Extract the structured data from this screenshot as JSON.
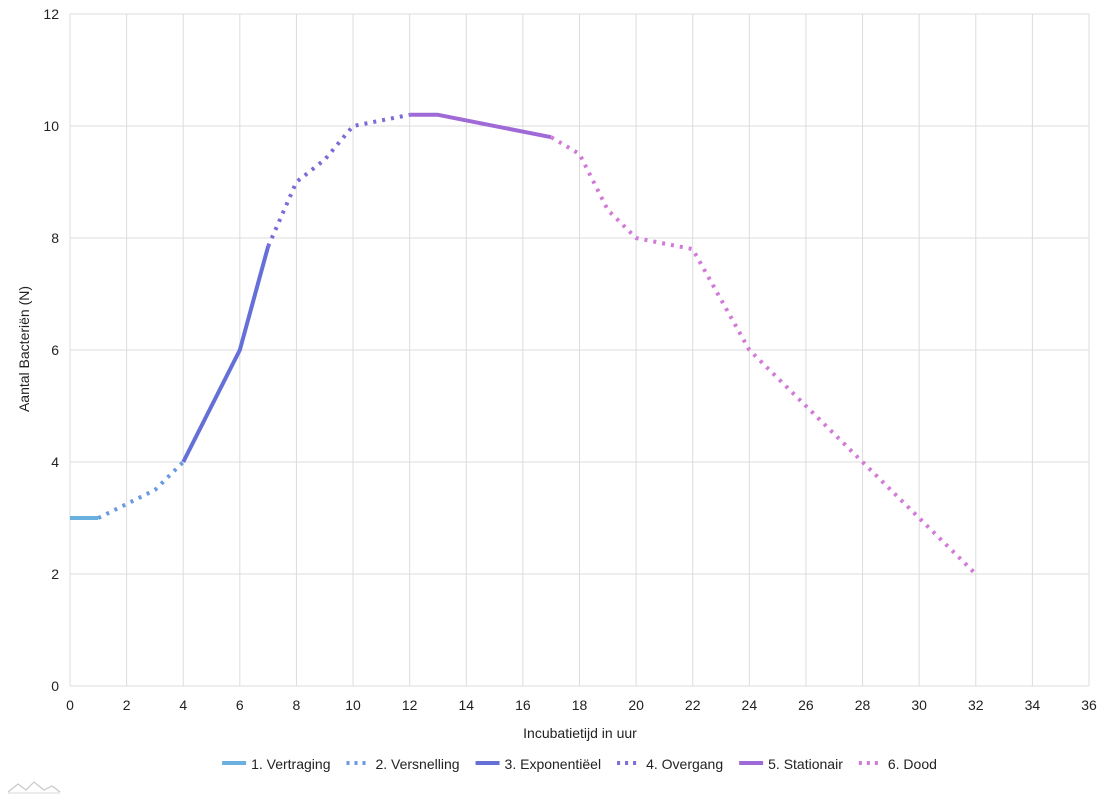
{
  "chart_data": {
    "type": "line",
    "title": "",
    "xlabel": "Incubatietijd in uur",
    "ylabel": "Aantal Bacteriën (N)",
    "xlim": [
      0,
      36
    ],
    "ylim": [
      0,
      12
    ],
    "x_ticks": [
      0,
      2,
      4,
      6,
      8,
      10,
      12,
      14,
      16,
      18,
      20,
      22,
      24,
      26,
      28,
      30,
      32,
      34,
      36
    ],
    "y_ticks": [
      0,
      2,
      4,
      6,
      8,
      10,
      12
    ],
    "grid": true,
    "legend_position": "bottom",
    "series": [
      {
        "name": "1. Vertraging",
        "color": "#6ab0de",
        "dashed": false,
        "points": [
          [
            0,
            3
          ],
          [
            1,
            3
          ]
        ]
      },
      {
        "name": "2. Versnelling",
        "color": "#6a9ae0",
        "dashed": true,
        "points": [
          [
            1,
            3
          ],
          [
            2,
            3.25
          ],
          [
            3,
            3.5
          ],
          [
            4,
            4
          ]
        ]
      },
      {
        "name": "3. Exponentiëel",
        "color": "#6470d8",
        "dashed": false,
        "points": [
          [
            4,
            4
          ],
          [
            6,
            6
          ],
          [
            7,
            7.85
          ]
        ]
      },
      {
        "name": "4. Overgang",
        "color": "#7c6ad8",
        "dashed": true,
        "points": [
          [
            7,
            7.85
          ],
          [
            8,
            9
          ],
          [
            9,
            9.4
          ],
          [
            10,
            10
          ],
          [
            12,
            10.2
          ]
        ]
      },
      {
        "name": "5. Stationair",
        "color": "#a06ad6",
        "dashed": false,
        "points": [
          [
            12,
            10.2
          ],
          [
            13,
            10.2
          ],
          [
            17,
            9.8
          ]
        ]
      },
      {
        "name": "6. Dood",
        "color": "#d27ad8",
        "dashed": true,
        "points": [
          [
            17,
            9.8
          ],
          [
            18,
            9.5
          ],
          [
            19,
            8.5
          ],
          [
            20,
            8
          ],
          [
            22,
            7.8
          ],
          [
            24,
            6
          ],
          [
            26,
            5
          ],
          [
            28,
            4
          ],
          [
            30,
            3
          ],
          [
            32,
            2
          ]
        ]
      }
    ]
  }
}
